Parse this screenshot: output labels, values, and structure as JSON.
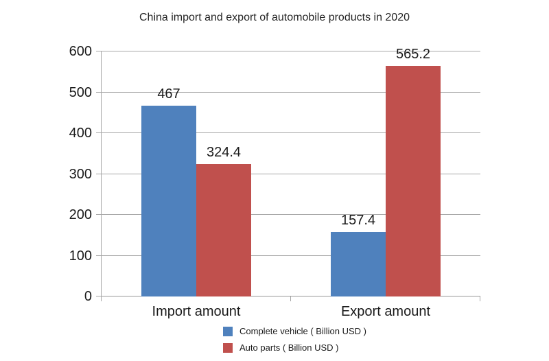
{
  "title": "China import and export of automobile products in 2020",
  "colors": {
    "series_complete_vehicle": "#4F81BD",
    "series_auto_parts": "#C0504D",
    "gridline": "#A6A6A6",
    "axis": "#969696",
    "text": "#1A1A1A",
    "background": "#FFFFFF"
  },
  "chart_data": {
    "type": "bar",
    "title": "China import and export of automobile products in 2020",
    "categories": [
      "Import amount",
      "Export amount"
    ],
    "series": [
      {
        "name": "Complete vehicle ( Billion USD )",
        "color": "#4F81BD",
        "values": [
          467,
          157.4
        ]
      },
      {
        "name": "Auto parts ( Billion USD )",
        "color": "#C0504D",
        "values": [
          324.4,
          565.2
        ]
      }
    ],
    "data_labels": [
      [
        "467",
        "157.4"
      ],
      [
        "324.4",
        "565.2"
      ]
    ],
    "xlabel": "",
    "ylabel": "",
    "ylim": [
      0,
      600
    ],
    "yticks": [
      0,
      100,
      200,
      300,
      400,
      500,
      600
    ],
    "grid": true,
    "legend_position": "bottom"
  }
}
